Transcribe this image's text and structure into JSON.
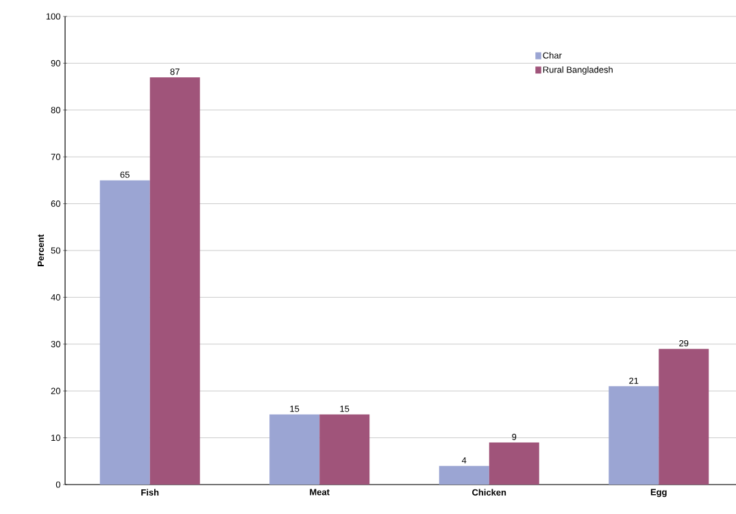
{
  "chart_data": {
    "type": "bar",
    "ylabel": "Percent",
    "categories": [
      "Fish",
      "Meat",
      "Chicken",
      "Egg"
    ],
    "series": [
      {
        "name": "Char",
        "color": "#9ba5d3",
        "values": [
          65,
          15,
          4,
          21
        ]
      },
      {
        "name": "Rural Bangladesh",
        "color": "#a0547a",
        "values": [
          87,
          15,
          9,
          29
        ]
      }
    ],
    "ylim": [
      0,
      100
    ],
    "yticks": [
      0,
      10,
      20,
      30,
      40,
      50,
      60,
      70,
      80,
      90,
      100
    ],
    "data_labels": true,
    "grid": "y",
    "legend": "top right"
  }
}
